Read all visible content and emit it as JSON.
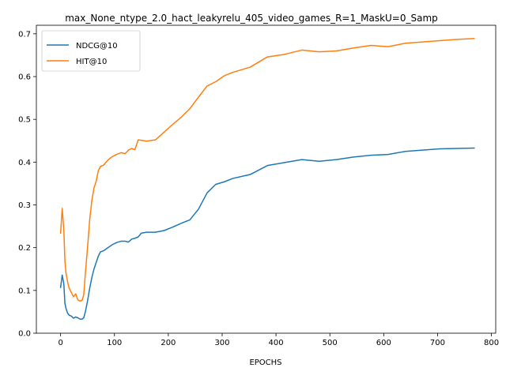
{
  "chart_data": {
    "type": "line",
    "title": "max_None_ntype_2.0_hact_leakyrelu_405_video_games_R=1_MaskU=0_Samp",
    "xlabel": "EPOCHS",
    "ylabel": "",
    "xlim": [
      -45,
      808
    ],
    "ylim": [
      0.0,
      0.72
    ],
    "xticks": [
      "0",
      "100",
      "200",
      "300",
      "400",
      "500",
      "600",
      "700",
      "800"
    ],
    "yticks": [
      "0.0",
      "0.1",
      "0.2",
      "0.3",
      "0.4",
      "0.5",
      "0.6",
      "0.7"
    ],
    "legend_position": "top-left",
    "grid": false,
    "series": [
      {
        "name": "NDCG@10",
        "color": "#1f77b4",
        "points": [
          [
            0,
            0.107
          ],
          [
            3,
            0.136
          ],
          [
            6,
            0.115
          ],
          [
            8,
            0.07
          ],
          [
            10,
            0.058
          ],
          [
            13,
            0.047
          ],
          [
            16,
            0.042
          ],
          [
            20,
            0.04
          ],
          [
            24,
            0.035
          ],
          [
            28,
            0.038
          ],
          [
            32,
            0.036
          ],
          [
            36,
            0.033
          ],
          [
            40,
            0.033
          ],
          [
            43,
            0.036
          ],
          [
            46,
            0.05
          ],
          [
            50,
            0.075
          ],
          [
            54,
            0.105
          ],
          [
            58,
            0.13
          ],
          [
            62,
            0.15
          ],
          [
            66,
            0.165
          ],
          [
            70,
            0.18
          ],
          [
            74,
            0.19
          ],
          [
            80,
            0.193
          ],
          [
            88,
            0.2
          ],
          [
            96,
            0.207
          ],
          [
            104,
            0.212
          ],
          [
            112,
            0.215
          ],
          [
            120,
            0.215
          ],
          [
            126,
            0.213
          ],
          [
            132,
            0.22
          ],
          [
            138,
            0.222
          ],
          [
            144,
            0.225
          ],
          [
            150,
            0.234
          ],
          [
            160,
            0.236
          ],
          [
            176,
            0.236
          ],
          [
            192,
            0.24
          ],
          [
            208,
            0.248
          ],
          [
            224,
            0.257
          ],
          [
            240,
            0.265
          ],
          [
            256,
            0.29
          ],
          [
            272,
            0.328
          ],
          [
            288,
            0.348
          ],
          [
            304,
            0.354
          ],
          [
            320,
            0.362
          ],
          [
            352,
            0.371
          ],
          [
            384,
            0.392
          ],
          [
            416,
            0.399
          ],
          [
            448,
            0.406
          ],
          [
            480,
            0.402
          ],
          [
            512,
            0.406
          ],
          [
            544,
            0.412
          ],
          [
            576,
            0.416
          ],
          [
            608,
            0.418
          ],
          [
            640,
            0.425
          ],
          [
            672,
            0.428
          ],
          [
            704,
            0.431
          ],
          [
            736,
            0.432
          ],
          [
            768,
            0.433
          ]
        ]
      },
      {
        "name": "HIT@10",
        "color": "#ff7f0e",
        "points": [
          [
            0,
            0.234
          ],
          [
            3,
            0.292
          ],
          [
            6,
            0.24
          ],
          [
            8,
            0.17
          ],
          [
            10,
            0.14
          ],
          [
            13,
            0.12
          ],
          [
            16,
            0.105
          ],
          [
            20,
            0.095
          ],
          [
            24,
            0.085
          ],
          [
            28,
            0.092
          ],
          [
            32,
            0.078
          ],
          [
            36,
            0.075
          ],
          [
            40,
            0.077
          ],
          [
            43,
            0.09
          ],
          [
            46,
            0.14
          ],
          [
            50,
            0.2
          ],
          [
            54,
            0.265
          ],
          [
            58,
            0.31
          ],
          [
            62,
            0.34
          ],
          [
            66,
            0.355
          ],
          [
            70,
            0.38
          ],
          [
            74,
            0.39
          ],
          [
            80,
            0.393
          ],
          [
            88,
            0.405
          ],
          [
            96,
            0.413
          ],
          [
            104,
            0.418
          ],
          [
            112,
            0.422
          ],
          [
            120,
            0.42
          ],
          [
            126,
            0.428
          ],
          [
            132,
            0.432
          ],
          [
            138,
            0.429
          ],
          [
            144,
            0.452
          ],
          [
            160,
            0.449
          ],
          [
            176,
            0.452
          ],
          [
            192,
            0.47
          ],
          [
            208,
            0.488
          ],
          [
            224,
            0.505
          ],
          [
            240,
            0.525
          ],
          [
            256,
            0.552
          ],
          [
            272,
            0.578
          ],
          [
            288,
            0.588
          ],
          [
            304,
            0.602
          ],
          [
            320,
            0.61
          ],
          [
            352,
            0.622
          ],
          [
            384,
            0.646
          ],
          [
            416,
            0.652
          ],
          [
            448,
            0.662
          ],
          [
            480,
            0.658
          ],
          [
            512,
            0.66
          ],
          [
            544,
            0.667
          ],
          [
            576,
            0.673
          ],
          [
            608,
            0.67
          ],
          [
            640,
            0.678
          ],
          [
            672,
            0.681
          ],
          [
            704,
            0.684
          ],
          [
            736,
            0.687
          ],
          [
            768,
            0.689
          ]
        ]
      }
    ]
  }
}
